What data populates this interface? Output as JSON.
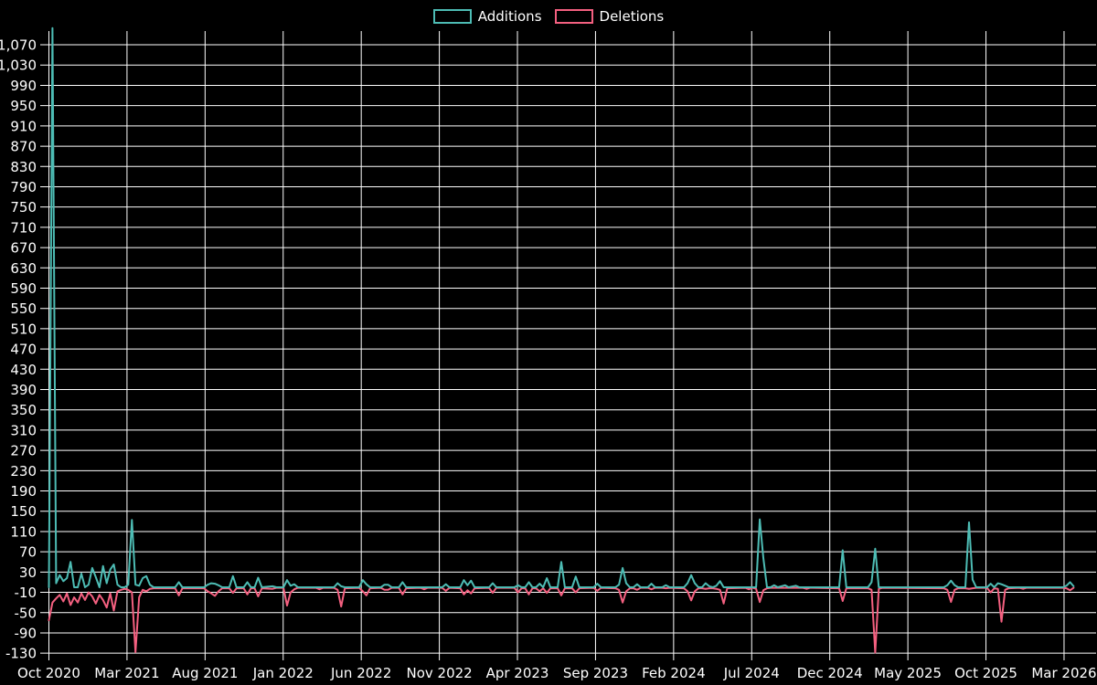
{
  "legend": {
    "additions": "Additions",
    "deletions": "Deletions"
  },
  "colors": {
    "background": "#000000",
    "grid": "#ffffff",
    "text": "#ffffff",
    "additions": "#4dbcb4",
    "deletions": "#f46080"
  },
  "chart_data": {
    "type": "line",
    "title": "",
    "xlabel": "",
    "ylabel": "",
    "x_unit": "week",
    "x_tick_labels": [
      "Oct 2020",
      "Mar 2021",
      "Aug 2021",
      "Jan 2022",
      "Jun 2022",
      "Nov 2022",
      "Apr 2023",
      "Sep 2023",
      "Feb 2024",
      "Jul 2024",
      "Dec 2024",
      "May 2025",
      "Oct 2025",
      "Mar 2026"
    ],
    "y_ticks": [
      -130,
      -90,
      -50,
      -10,
      30,
      70,
      110,
      150,
      190,
      230,
      270,
      310,
      350,
      390,
      430,
      470,
      510,
      550,
      590,
      630,
      670,
      710,
      750,
      790,
      830,
      870,
      910,
      950,
      990,
      1030,
      1070
    ],
    "ylim": [
      -134,
      1103
    ],
    "weeks_per_x_tick": 21.64,
    "weeks_total": 285,
    "grid": true,
    "legend_position": "top-center",
    "series": [
      {
        "name": "Additions",
        "key": "add",
        "color": "#4dbcb4"
      },
      {
        "name": "Deletions",
        "key": "del",
        "color": "#f46080"
      }
    ],
    "points_format": "[week_index, additions, deletions] — sparse keypoints, values interpolate linearly between listed weeks (flat baseline elsewhere)",
    "points": [
      [
        0,
        0,
        -65
      ],
      [
        1,
        1103,
        -30
      ],
      [
        2,
        8,
        -22
      ],
      [
        3,
        24,
        -15
      ],
      [
        4,
        12,
        -28
      ],
      [
        5,
        18,
        -12
      ],
      [
        6,
        50,
        -35
      ],
      [
        7,
        0,
        -20
      ],
      [
        8,
        0,
        -30
      ],
      [
        9,
        27,
        -12
      ],
      [
        10,
        0,
        -25
      ],
      [
        11,
        5,
        -10
      ],
      [
        12,
        38,
        -18
      ],
      [
        13,
        20,
        -32
      ],
      [
        14,
        0,
        -15
      ],
      [
        15,
        42,
        -25
      ],
      [
        16,
        8,
        -40
      ],
      [
        17,
        35,
        -12
      ],
      [
        18,
        45,
        -46
      ],
      [
        19,
        5,
        -8
      ],
      [
        20,
        0,
        -5
      ],
      [
        21,
        0,
        -3
      ],
      [
        22,
        5,
        -5
      ],
      [
        23,
        133,
        -10
      ],
      [
        24,
        5,
        -128
      ],
      [
        25,
        3,
        -20
      ],
      [
        26,
        18,
        -5
      ],
      [
        27,
        22,
        -8
      ],
      [
        28,
        5,
        -3
      ],
      [
        29,
        0,
        -2
      ],
      [
        35,
        0,
        -2
      ],
      [
        36,
        10,
        -16
      ],
      [
        37,
        0,
        -2
      ],
      [
        43,
        0,
        -2
      ],
      [
        44,
        5,
        -8
      ],
      [
        45,
        8,
        -12
      ],
      [
        46,
        7,
        -17
      ],
      [
        47,
        4,
        -8
      ],
      [
        48,
        0,
        -2
      ],
      [
        50,
        0,
        -2
      ],
      [
        51,
        22,
        -11
      ],
      [
        52,
        0,
        -2
      ],
      [
        54,
        0,
        -2
      ],
      [
        55,
        10,
        -14
      ],
      [
        56,
        0,
        -2
      ],
      [
        57,
        0,
        -2
      ],
      [
        58,
        19,
        -18
      ],
      [
        59,
        0,
        -2
      ],
      [
        62,
        2,
        -3
      ],
      [
        63,
        0,
        -1
      ],
      [
        65,
        0,
        -1
      ],
      [
        66,
        14,
        -36
      ],
      [
        67,
        3,
        -10
      ],
      [
        68,
        6,
        -4
      ],
      [
        69,
        0,
        -1
      ],
      [
        74,
        0,
        -1
      ],
      [
        75,
        0,
        -4
      ],
      [
        76,
        0,
        -1
      ],
      [
        79,
        0,
        -1
      ],
      [
        80,
        8,
        -5
      ],
      [
        81,
        2,
        -38
      ],
      [
        82,
        0,
        -2
      ],
      [
        86,
        0,
        -1
      ],
      [
        87,
        14,
        -8
      ],
      [
        88,
        6,
        -16
      ],
      [
        89,
        0,
        -2
      ],
      [
        92,
        0,
        -1
      ],
      [
        93,
        5,
        -5
      ],
      [
        94,
        5,
        -5
      ],
      [
        95,
        0,
        -1
      ],
      [
        97,
        0,
        -1
      ],
      [
        98,
        10,
        -14
      ],
      [
        99,
        0,
        -2
      ],
      [
        103,
        0,
        -1
      ],
      [
        104,
        0,
        -4
      ],
      [
        105,
        0,
        -1
      ],
      [
        109,
        0,
        -1
      ],
      [
        110,
        6,
        -7
      ],
      [
        111,
        0,
        -1
      ],
      [
        114,
        0,
        -2
      ],
      [
        115,
        14,
        -14
      ],
      [
        116,
        4,
        -6
      ],
      [
        117,
        13,
        -12
      ],
      [
        118,
        0,
        -2
      ],
      [
        122,
        0,
        -1
      ],
      [
        123,
        8,
        -11
      ],
      [
        124,
        0,
        -1
      ],
      [
        129,
        0,
        -1
      ],
      [
        130,
        4,
        -10
      ],
      [
        131,
        0,
        -2
      ],
      [
        132,
        0,
        -2
      ],
      [
        133,
        10,
        -14
      ],
      [
        134,
        0,
        -2
      ],
      [
        135,
        0,
        -2
      ],
      [
        136,
        7,
        -8
      ],
      [
        137,
        0,
        -2
      ],
      [
        138,
        18,
        -11
      ],
      [
        139,
        0,
        -2
      ],
      [
        141,
        0,
        -2
      ],
      [
        142,
        50,
        -16
      ],
      [
        143,
        0,
        -2
      ],
      [
        145,
        0,
        -2
      ],
      [
        146,
        21,
        -10
      ],
      [
        147,
        0,
        -2
      ],
      [
        151,
        0,
        -1
      ],
      [
        152,
        7,
        -7
      ],
      [
        153,
        0,
        -1
      ],
      [
        157,
        0,
        -2
      ],
      [
        158,
        5,
        -5
      ],
      [
        159,
        38,
        -30
      ],
      [
        160,
        8,
        -8
      ],
      [
        161,
        0,
        -2
      ],
      [
        162,
        0,
        -2
      ],
      [
        163,
        6,
        -5
      ],
      [
        164,
        0,
        -1
      ],
      [
        166,
        0,
        -1
      ],
      [
        167,
        7,
        -4
      ],
      [
        168,
        0,
        -1
      ],
      [
        170,
        0,
        -1
      ],
      [
        171,
        4,
        -2
      ],
      [
        172,
        0,
        -1
      ],
      [
        176,
        0,
        -2
      ],
      [
        177,
        8,
        -8
      ],
      [
        178,
        24,
        -26
      ],
      [
        179,
        8,
        -8
      ],
      [
        180,
        0,
        -2
      ],
      [
        181,
        0,
        -2
      ],
      [
        182,
        8,
        -3
      ],
      [
        183,
        2,
        -2
      ],
      [
        184,
        0,
        -2
      ],
      [
        185,
        3,
        -3
      ],
      [
        186,
        12,
        -5
      ],
      [
        187,
        0,
        -32
      ],
      [
        188,
        0,
        -2
      ],
      [
        193,
        0,
        -1
      ],
      [
        194,
        0,
        -4
      ],
      [
        195,
        0,
        -1
      ],
      [
        196,
        0,
        -3
      ],
      [
        197,
        134,
        -29
      ],
      [
        198,
        58,
        -6
      ],
      [
        199,
        0,
        -2
      ],
      [
        200,
        0,
        -1
      ],
      [
        201,
        4,
        -1
      ],
      [
        202,
        0,
        -1
      ],
      [
        204,
        4,
        -1
      ],
      [
        205,
        0,
        -1
      ],
      [
        207,
        3,
        -1
      ],
      [
        208,
        0,
        -1
      ],
      [
        209,
        0,
        -1
      ],
      [
        210,
        0,
        -3
      ],
      [
        211,
        0,
        -1
      ],
      [
        219,
        0,
        -2
      ],
      [
        220,
        73,
        -27
      ],
      [
        221,
        0,
        -2
      ],
      [
        227,
        0,
        -2
      ],
      [
        228,
        10,
        -5
      ],
      [
        229,
        76,
        -129
      ],
      [
        230,
        0,
        -3
      ],
      [
        231,
        0,
        -1
      ],
      [
        248,
        0,
        -2
      ],
      [
        249,
        4,
        -5
      ],
      [
        250,
        13,
        -29
      ],
      [
        251,
        4,
        -5
      ],
      [
        252,
        0,
        -2
      ],
      [
        254,
        0,
        -2
      ],
      [
        255,
        128,
        -3
      ],
      [
        256,
        15,
        -2
      ],
      [
        257,
        0,
        -1
      ],
      [
        260,
        0,
        -1
      ],
      [
        261,
        7,
        -10
      ],
      [
        262,
        0,
        -2
      ],
      [
        263,
        8,
        -3
      ],
      [
        264,
        6,
        -68
      ],
      [
        265,
        3,
        -5
      ],
      [
        266,
        0,
        -2
      ],
      [
        269,
        0,
        -1
      ],
      [
        270,
        0,
        -3
      ],
      [
        271,
        0,
        -1
      ],
      [
        281,
        0,
        -1
      ],
      [
        282,
        3,
        -2
      ],
      [
        283,
        10,
        -6
      ],
      [
        284,
        2,
        -1
      ]
    ]
  }
}
